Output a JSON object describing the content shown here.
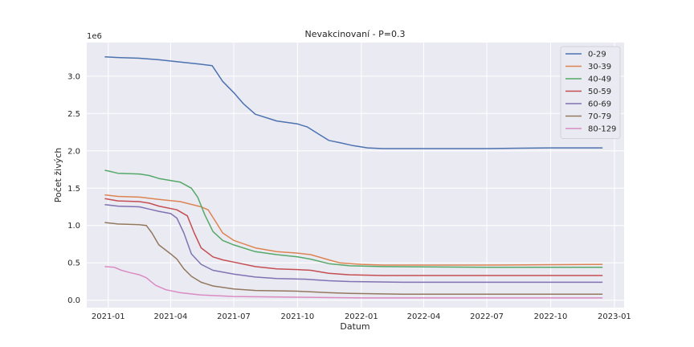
{
  "chart_data": {
    "type": "line",
    "title": "Nevakcinovaní - P=0.3",
    "xlabel": "Datum",
    "ylabel": "Počet živých",
    "y_offset_label": "1e6",
    "y_multiplier": 1000000,
    "xlim": [
      "2020-12-01",
      "2023-01-15"
    ],
    "ylim": [
      -0.1,
      3.45
    ],
    "x_ticks": [
      "2021-01-01",
      "2021-04-01",
      "2021-07-01",
      "2021-10-01",
      "2022-01-01",
      "2022-04-01",
      "2022-07-01",
      "2022-10-01",
      "2023-01-01"
    ],
    "x_tick_labels": [
      "2021-01",
      "2021-04",
      "2021-07",
      "2021-10",
      "2022-01",
      "2022-04",
      "2022-07",
      "2022-10",
      "2023-01"
    ],
    "y_ticks": [
      0.0,
      0.5,
      1.0,
      1.5,
      2.0,
      2.5,
      3.0
    ],
    "y_tick_labels": [
      "0.0",
      "0.5",
      "1.0",
      "1.5",
      "2.0",
      "2.5",
      "3.0"
    ],
    "grid": true,
    "legend_position": "top-right",
    "series": [
      {
        "name": "0-29",
        "color": "#4c72b0",
        "points": [
          [
            "2020-12-27",
            3.26
          ],
          [
            "2021-01-15",
            3.25
          ],
          [
            "2021-02-15",
            3.24
          ],
          [
            "2021-03-15",
            3.22
          ],
          [
            "2021-04-15",
            3.19
          ],
          [
            "2021-05-15",
            3.16
          ],
          [
            "2021-05-31",
            3.14
          ],
          [
            "2021-06-15",
            2.93
          ],
          [
            "2021-07-01",
            2.78
          ],
          [
            "2021-07-15",
            2.63
          ],
          [
            "2021-08-01",
            2.49
          ],
          [
            "2021-09-01",
            2.4
          ],
          [
            "2021-10-01",
            2.36
          ],
          [
            "2021-10-15",
            2.32
          ],
          [
            "2021-11-01",
            2.22
          ],
          [
            "2021-11-15",
            2.14
          ],
          [
            "2021-12-01",
            2.11
          ],
          [
            "2021-12-20",
            2.07
          ],
          [
            "2022-01-10",
            2.04
          ],
          [
            "2022-02-01",
            2.03
          ],
          [
            "2022-04-01",
            2.03
          ],
          [
            "2022-07-01",
            2.03
          ],
          [
            "2022-10-01",
            2.04
          ],
          [
            "2022-12-15",
            2.04
          ]
        ]
      },
      {
        "name": "30-39",
        "color": "#dd8452",
        "points": [
          [
            "2020-12-27",
            1.41
          ],
          [
            "2021-01-15",
            1.39
          ],
          [
            "2021-02-15",
            1.38
          ],
          [
            "2021-03-15",
            1.35
          ],
          [
            "2021-04-15",
            1.32
          ],
          [
            "2021-05-15",
            1.25
          ],
          [
            "2021-05-25",
            1.21
          ],
          [
            "2021-06-05",
            1.05
          ],
          [
            "2021-06-15",
            0.9
          ],
          [
            "2021-07-01",
            0.8
          ],
          [
            "2021-08-01",
            0.7
          ],
          [
            "2021-09-01",
            0.65
          ],
          [
            "2021-10-01",
            0.63
          ],
          [
            "2021-10-20",
            0.61
          ],
          [
            "2021-11-15",
            0.54
          ],
          [
            "2021-12-01",
            0.5
          ],
          [
            "2022-01-01",
            0.48
          ],
          [
            "2022-02-01",
            0.47
          ],
          [
            "2022-07-01",
            0.47
          ],
          [
            "2022-12-15",
            0.48
          ]
        ]
      },
      {
        "name": "40-49",
        "color": "#55a868",
        "points": [
          [
            "2020-12-27",
            1.74
          ],
          [
            "2021-01-01",
            1.73
          ],
          [
            "2021-01-15",
            1.7
          ],
          [
            "2021-02-15",
            1.69
          ],
          [
            "2021-03-01",
            1.67
          ],
          [
            "2021-03-15",
            1.63
          ],
          [
            "2021-04-15",
            1.58
          ],
          [
            "2021-05-01",
            1.5
          ],
          [
            "2021-05-10",
            1.38
          ],
          [
            "2021-05-20",
            1.15
          ],
          [
            "2021-06-01",
            0.92
          ],
          [
            "2021-06-15",
            0.8
          ],
          [
            "2021-07-01",
            0.74
          ],
          [
            "2021-08-01",
            0.65
          ],
          [
            "2021-09-01",
            0.61
          ],
          [
            "2021-10-01",
            0.58
          ],
          [
            "2021-10-20",
            0.55
          ],
          [
            "2021-11-15",
            0.49
          ],
          [
            "2021-12-15",
            0.46
          ],
          [
            "2022-02-01",
            0.45
          ],
          [
            "2022-07-01",
            0.44
          ],
          [
            "2022-12-15",
            0.44
          ]
        ]
      },
      {
        "name": "50-59",
        "color": "#c44e52",
        "points": [
          [
            "2020-12-27",
            1.36
          ],
          [
            "2021-01-15",
            1.33
          ],
          [
            "2021-02-15",
            1.32
          ],
          [
            "2021-03-01",
            1.3
          ],
          [
            "2021-03-15",
            1.26
          ],
          [
            "2021-04-10",
            1.21
          ],
          [
            "2021-04-25",
            1.13
          ],
          [
            "2021-05-05",
            0.9
          ],
          [
            "2021-05-15",
            0.7
          ],
          [
            "2021-06-01",
            0.58
          ],
          [
            "2021-06-15",
            0.54
          ],
          [
            "2021-07-01",
            0.51
          ],
          [
            "2021-08-01",
            0.45
          ],
          [
            "2021-09-01",
            0.42
          ],
          [
            "2021-10-01",
            0.41
          ],
          [
            "2021-10-20",
            0.4
          ],
          [
            "2021-11-15",
            0.36
          ],
          [
            "2021-12-15",
            0.34
          ],
          [
            "2022-02-01",
            0.33
          ],
          [
            "2022-07-01",
            0.33
          ],
          [
            "2022-12-15",
            0.33
          ]
        ]
      },
      {
        "name": "60-69",
        "color": "#8172b2",
        "points": [
          [
            "2020-12-27",
            1.28
          ],
          [
            "2021-01-15",
            1.26
          ],
          [
            "2021-02-15",
            1.25
          ],
          [
            "2021-03-01",
            1.22
          ],
          [
            "2021-03-15",
            1.19
          ],
          [
            "2021-04-01",
            1.16
          ],
          [
            "2021-04-10",
            1.1
          ],
          [
            "2021-04-20",
            0.9
          ],
          [
            "2021-05-01",
            0.62
          ],
          [
            "2021-05-15",
            0.48
          ],
          [
            "2021-06-01",
            0.4
          ],
          [
            "2021-07-01",
            0.35
          ],
          [
            "2021-08-01",
            0.31
          ],
          [
            "2021-09-01",
            0.29
          ],
          [
            "2021-10-15",
            0.28
          ],
          [
            "2021-11-15",
            0.26
          ],
          [
            "2021-12-15",
            0.25
          ],
          [
            "2022-03-01",
            0.24
          ],
          [
            "2022-07-01",
            0.24
          ],
          [
            "2022-12-15",
            0.24
          ]
        ]
      },
      {
        "name": "70-79",
        "color": "#937860",
        "points": [
          [
            "2020-12-27",
            1.04
          ],
          [
            "2021-01-15",
            1.02
          ],
          [
            "2021-02-15",
            1.01
          ],
          [
            "2021-02-25",
            1.0
          ],
          [
            "2021-03-05",
            0.9
          ],
          [
            "2021-03-15",
            0.74
          ],
          [
            "2021-04-01",
            0.62
          ],
          [
            "2021-04-10",
            0.55
          ],
          [
            "2021-04-20",
            0.42
          ],
          [
            "2021-05-01",
            0.32
          ],
          [
            "2021-05-15",
            0.24
          ],
          [
            "2021-06-01",
            0.19
          ],
          [
            "2021-07-01",
            0.15
          ],
          [
            "2021-08-01",
            0.13
          ],
          [
            "2021-10-01",
            0.12
          ],
          [
            "2021-11-15",
            0.1
          ],
          [
            "2021-12-15",
            0.09
          ],
          [
            "2022-03-01",
            0.08
          ],
          [
            "2022-07-01",
            0.08
          ],
          [
            "2022-12-15",
            0.08
          ]
        ]
      },
      {
        "name": "80-129",
        "color": "#da8bc3",
        "points": [
          [
            "2020-12-27",
            0.45
          ],
          [
            "2021-01-10",
            0.44
          ],
          [
            "2021-01-20",
            0.4
          ],
          [
            "2021-02-01",
            0.37
          ],
          [
            "2021-02-15",
            0.34
          ],
          [
            "2021-02-25",
            0.3
          ],
          [
            "2021-03-10",
            0.2
          ],
          [
            "2021-03-25",
            0.14
          ],
          [
            "2021-04-15",
            0.1
          ],
          [
            "2021-05-15",
            0.07
          ],
          [
            "2021-07-01",
            0.05
          ],
          [
            "2021-10-01",
            0.04
          ],
          [
            "2022-01-01",
            0.03
          ],
          [
            "2022-07-01",
            0.03
          ],
          [
            "2022-12-15",
            0.03
          ]
        ]
      }
    ]
  }
}
